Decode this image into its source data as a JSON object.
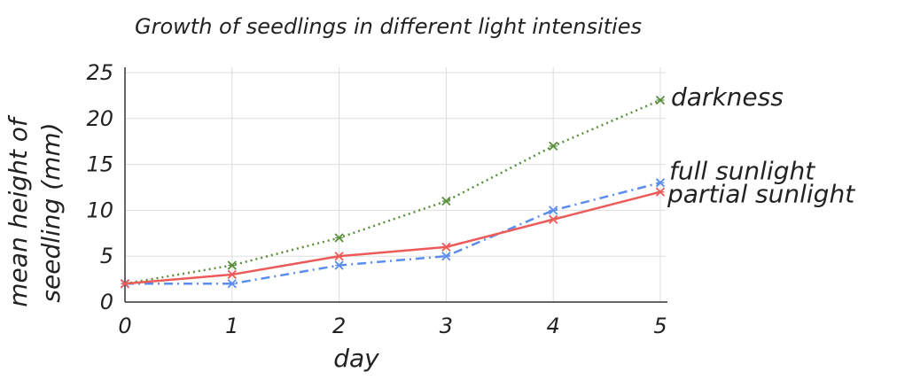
{
  "chart_data": {
    "type": "line",
    "title": "Growth of seedlings in different light intensities",
    "xlabel": "day",
    "ylabel": "mean height of seedling (mm)",
    "ylabel_lines": [
      "mean height of",
      "seedling (mm)"
    ],
    "x": [
      0,
      1,
      2,
      3,
      4,
      5
    ],
    "x_ticks": [
      "0",
      "1",
      "2",
      "3",
      "4",
      "5"
    ],
    "y_ticks": [
      "0",
      "5",
      "10",
      "15",
      "20",
      "25"
    ],
    "xlim": [
      0,
      5
    ],
    "ylim": [
      0,
      25
    ],
    "grid": true,
    "legend": "labels at line ends (right)",
    "series": [
      {
        "name": "darkness",
        "values": [
          2,
          4,
          7,
          11,
          17,
          22
        ],
        "color": "#5a8f3c",
        "dash": "dotted",
        "marker": "x-star"
      },
      {
        "name": "full sunlight",
        "values": [
          2,
          2,
          4,
          5,
          10,
          13
        ],
        "color": "#5b8def",
        "dash": "dashdot",
        "marker": "x-star"
      },
      {
        "name": "partial sunlight",
        "values": [
          2,
          3,
          5,
          6,
          9,
          12
        ],
        "color": "#ec5a5a",
        "dash": "solid",
        "marker": "x-star"
      }
    ]
  }
}
